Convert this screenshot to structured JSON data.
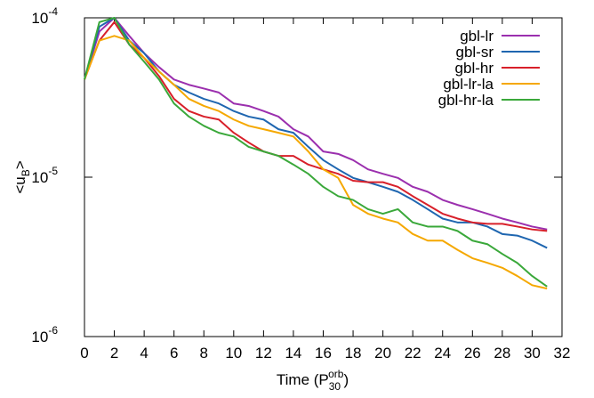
{
  "chart_data": {
    "type": "line",
    "xlabel": "Time (P30orb)",
    "ylabel": "<uB>",
    "x": [
      0,
      1,
      2,
      3,
      4,
      5,
      6,
      7,
      8,
      9,
      10,
      11,
      12,
      13,
      14,
      15,
      16,
      17,
      18,
      19,
      20,
      21,
      22,
      23,
      24,
      25,
      26,
      27,
      28,
      29,
      30,
      31
    ],
    "series": [
      {
        "name": "gbl-lr",
        "color": "#9b2fae",
        "values": [
          4.1e-05,
          8.2e-05,
          0.0001,
          7.7e-05,
          6e-05,
          4.9e-05,
          4.1e-05,
          3.8e-05,
          3.6e-05,
          3.4e-05,
          2.9e-05,
          2.8e-05,
          2.6e-05,
          2.4e-05,
          2e-05,
          1.8e-05,
          1.45e-05,
          1.4e-05,
          1.28e-05,
          1.12e-05,
          1.05e-05,
          9.9e-06,
          8.7e-06,
          8.1e-06,
          7.2e-06,
          6.7e-06,
          6.3e-06,
          5.9e-06,
          5.5e-06,
          5.2e-06,
          4.9e-06,
          4.7e-06
        ]
      },
      {
        "name": "gbl-sr",
        "color": "#1f66b0",
        "values": [
          4.1e-05,
          8.8e-05,
          0.0001,
          7.2e-05,
          6e-05,
          4.6e-05,
          3.8e-05,
          3.4e-05,
          3.1e-05,
          2.9e-05,
          2.6e-05,
          2.4e-05,
          2.3e-05,
          2e-05,
          1.9e-05,
          1.55e-05,
          1.28e-05,
          1.12e-05,
          9.9e-06,
          9.3e-06,
          8.7e-06,
          8.1e-06,
          7.2e-06,
          6.3e-06,
          5.5e-06,
          5.2e-06,
          5.2e-06,
          4.9e-06,
          4.4e-06,
          4.3e-06,
          4e-06,
          3.6e-06
        ]
      },
      {
        "name": "gbl-hr",
        "color": "#d8202a",
        "values": [
          4.1e-05,
          7.2e-05,
          9.4e-05,
          6.8e-05,
          5.6e-05,
          4.3e-05,
          3.1e-05,
          2.6e-05,
          2.4e-05,
          2.3e-05,
          1.9e-05,
          1.65e-05,
          1.45e-05,
          1.36e-05,
          1.36e-05,
          1.2e-05,
          1.12e-05,
          1.05e-05,
          9.5e-06,
          9.3e-06,
          9.3e-06,
          8.7e-06,
          7.6e-06,
          6.7e-06,
          5.9e-06,
          5.5e-06,
          5.2e-06,
          5.1e-06,
          5.1e-06,
          4.9e-06,
          4.7e-06,
          4.6e-06
        ]
      },
      {
        "name": "gbl-lr-la",
        "color": "#f5a800",
        "values": [
          4.1e-05,
          7.2e-05,
          7.7e-05,
          7.2e-05,
          5.6e-05,
          4.6e-05,
          3.8e-05,
          3.1e-05,
          2.8e-05,
          2.6e-05,
          2.3e-05,
          2.1e-05,
          2e-05,
          1.9e-05,
          1.8e-05,
          1.45e-05,
          1.12e-05,
          9.9e-06,
          6.7e-06,
          5.9e-06,
          5.5e-06,
          5.2e-06,
          4.4e-06,
          4e-06,
          4e-06,
          3.5e-06,
          3.1e-06,
          2.9e-06,
          2.7e-06,
          2.4e-06,
          2.1e-06,
          2e-06
        ]
      },
      {
        "name": "gbl-hr-la",
        "color": "#3aa83a",
        "values": [
          4.1e-05,
          9.4e-05,
          0.0001,
          6.8e-05,
          5.3e-05,
          4.1e-05,
          2.9e-05,
          2.4e-05,
          2.1e-05,
          1.9e-05,
          1.8e-05,
          1.55e-05,
          1.45e-05,
          1.36e-05,
          1.2e-05,
          1.05e-05,
          8.7e-06,
          7.6e-06,
          7.2e-06,
          6.3e-06,
          5.9e-06,
          6.3e-06,
          5.2e-06,
          4.9e-06,
          4.9e-06,
          4.6e-06,
          4e-06,
          3.8e-06,
          3.3e-06,
          2.9e-06,
          2.4e-06,
          2.06e-06
        ]
      }
    ],
    "xlim": [
      0,
      32
    ],
    "xticks": [
      0,
      2,
      4,
      6,
      8,
      10,
      12,
      14,
      16,
      18,
      20,
      22,
      24,
      26,
      28,
      30,
      32
    ],
    "ylim": [
      1e-06,
      0.0001
    ],
    "ylog": true,
    "yticks": [
      {
        "value": 0.0001,
        "label": "10-4"
      },
      {
        "value": 1e-05,
        "label": "10-5"
      },
      {
        "value": 1e-06,
        "label": "10-6"
      }
    ],
    "legend": "upper-right"
  }
}
